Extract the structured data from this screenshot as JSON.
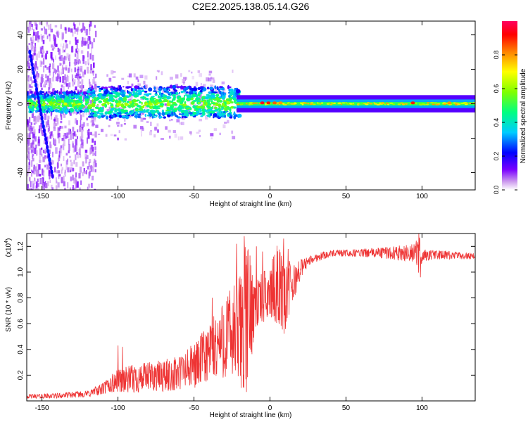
{
  "title": "C2E2.2025.138.05.14.G26",
  "chart_data": [
    {
      "type": "heatmap",
      "xlabel": "Height of straight line (km)",
      "ylabel": "Frequency (Hz)",
      "xlim": [
        -160,
        135
      ],
      "ylim": [
        -50,
        48
      ],
      "xticks": [
        -150,
        -100,
        -50,
        0,
        50,
        100
      ],
      "yticks": [
        -40,
        -20,
        0,
        20,
        40
      ],
      "colorbar": {
        "label": "Normalized spectral amplitude",
        "range": [
          0,
          1
        ],
        "ticks": [
          0.0,
          0.2,
          0.4,
          0.6,
          0.8
        ],
        "tick_labels": [
          "0.0",
          "0.2",
          "0.4",
          "0.6",
          "0.8"
        ],
        "colormap": [
          "#ffffff",
          "#cc99ee",
          "#7a00ff",
          "#0000ff",
          "#00ccff",
          "#00ff80",
          "#80ff00",
          "#ffff00",
          "#ff8000",
          "#ff0000",
          "#ff0060"
        ]
      },
      "features": {
        "main_band_center_hz": 0,
        "noisy_region_x": [
          -160,
          -20
        ],
        "steady_band_x": [
          -20,
          135
        ],
        "diagonal_streak": {
          "x": [
            -158,
            -143
          ],
          "y": [
            30,
            -42
          ]
        }
      }
    },
    {
      "type": "line",
      "xlabel": "Height of straight line (km)",
      "ylabel": "SNR (10 * v/v)",
      "y_multiplier_label": "(x10",
      "y_multiplier_exp": "4",
      "xlim": [
        -160,
        135
      ],
      "ylim": [
        0,
        1.3
      ],
      "xticks": [
        -150,
        -100,
        -50,
        0,
        50,
        100
      ],
      "yticks": [
        0.2,
        0.4,
        0.6,
        0.8,
        1.0,
        1.2
      ],
      "series": [
        {
          "color": "#ee3333",
          "envelope_x": [
            -160,
            -140,
            -120,
            -110,
            -100,
            -90,
            -80,
            -70,
            -60,
            -50,
            -40,
            -30,
            -20,
            -15,
            -10,
            -5,
            0,
            5,
            10,
            15,
            20,
            25,
            30,
            35,
            40,
            60,
            80,
            95,
            98,
            100,
            110,
            120,
            135
          ],
          "envelope_lo": [
            0.02,
            0.02,
            0.03,
            0.05,
            0.07,
            0.06,
            0.08,
            0.07,
            0.08,
            0.1,
            0.15,
            0.18,
            0.1,
            0.05,
            0.55,
            0.6,
            0.65,
            0.6,
            0.5,
            0.75,
            0.95,
            1.05,
            1.08,
            1.1,
            1.12,
            1.12,
            1.1,
            1.08,
            0.98,
            1.08,
            1.1,
            1.1,
            1.1
          ],
          "envelope_hi": [
            0.05,
            0.06,
            0.08,
            0.14,
            0.25,
            0.28,
            0.3,
            0.32,
            0.35,
            0.45,
            0.6,
            0.8,
            1.0,
            1.28,
            0.95,
            1.0,
            1.05,
            1.22,
            1.15,
            1.05,
            1.1,
            1.12,
            1.14,
            1.16,
            1.17,
            1.18,
            1.2,
            1.22,
            1.3,
            1.18,
            1.17,
            1.16,
            1.15
          ],
          "spikes": [
            [
              -100,
              0.43
            ],
            [
              -97,
              0.42
            ],
            [
              -38,
              0.8
            ],
            [
              -22,
              1.22
            ],
            [
              -17,
              1.28
            ],
            [
              -9,
              1.2
            ],
            [
              -5,
              1.16
            ],
            [
              9,
              1.26
            ],
            [
              12,
              1.18
            ],
            [
              98,
              1.3
            ],
            [
              99,
              0.96
            ]
          ]
        }
      ]
    }
  ]
}
